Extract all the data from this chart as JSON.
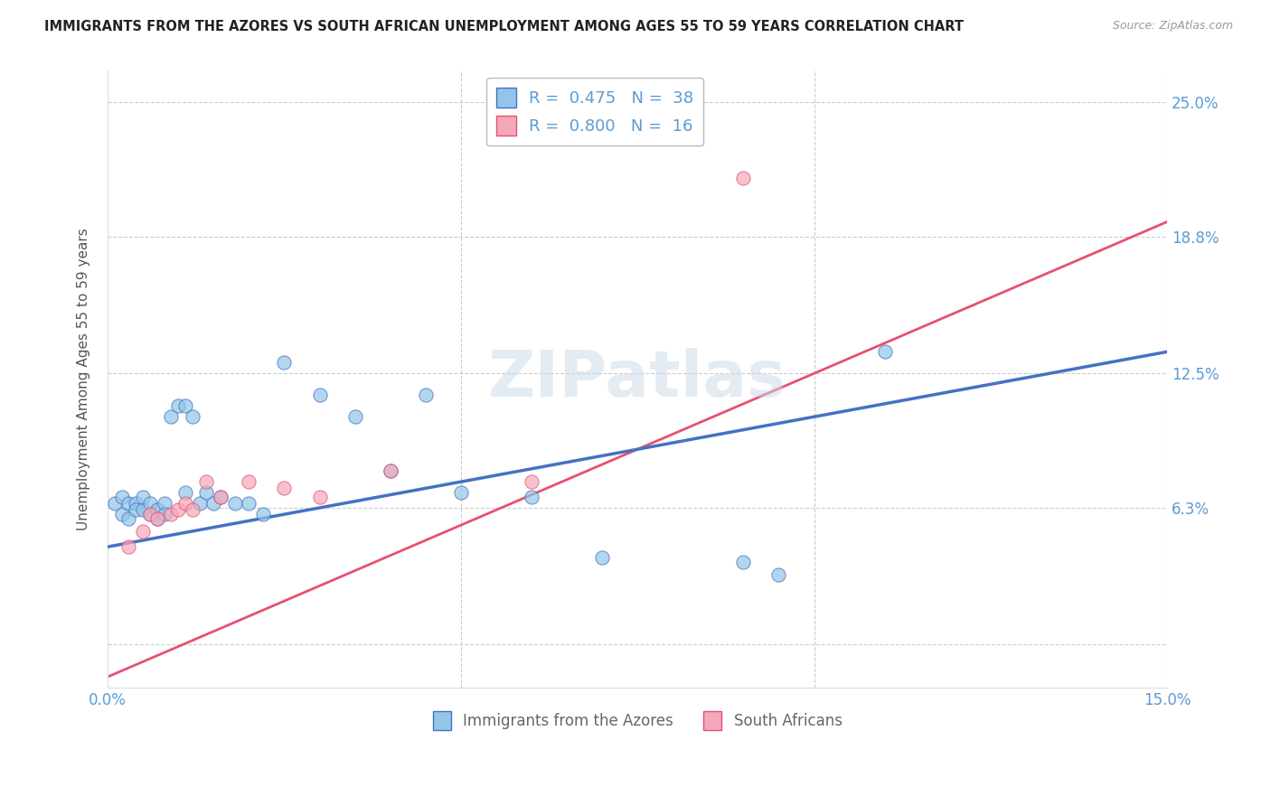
{
  "title": "IMMIGRANTS FROM THE AZORES VS SOUTH AFRICAN UNEMPLOYMENT AMONG AGES 55 TO 59 YEARS CORRELATION CHART",
  "source": "Source: ZipAtlas.com",
  "ylabel": "Unemployment Among Ages 55 to 59 years",
  "xlim": [
    0.0,
    0.15
  ],
  "ylim": [
    -0.02,
    0.265
  ],
  "xticks": [
    0.0,
    0.05,
    0.1,
    0.15
  ],
  "xticklabels": [
    "0.0%",
    "",
    "",
    "15.0%"
  ],
  "ytick_positions": [
    0.0,
    0.063,
    0.125,
    0.188,
    0.25
  ],
  "yticklabels_right": [
    "",
    "6.3%",
    "12.5%",
    "18.8%",
    "25.0%"
  ],
  "blue_R": 0.475,
  "blue_N": 38,
  "pink_R": 0.8,
  "pink_N": 16,
  "blue_color": "#92C5E8",
  "pink_color": "#F4A8BA",
  "trend_blue_color": "#4472C4",
  "trend_pink_color": "#E85070",
  "watermark": "ZIPatlas",
  "blue_scatter_x": [
    0.001,
    0.002,
    0.002,
    0.003,
    0.003,
    0.004,
    0.004,
    0.005,
    0.005,
    0.006,
    0.006,
    0.007,
    0.007,
    0.008,
    0.008,
    0.009,
    0.01,
    0.011,
    0.011,
    0.012,
    0.013,
    0.014,
    0.015,
    0.016,
    0.018,
    0.02,
    0.022,
    0.025,
    0.03,
    0.035,
    0.04,
    0.045,
    0.05,
    0.06,
    0.07,
    0.09,
    0.095,
    0.11
  ],
  "blue_scatter_y": [
    0.065,
    0.068,
    0.06,
    0.065,
    0.058,
    0.065,
    0.062,
    0.062,
    0.068,
    0.06,
    0.065,
    0.062,
    0.058,
    0.065,
    0.06,
    0.105,
    0.11,
    0.07,
    0.11,
    0.105,
    0.065,
    0.07,
    0.065,
    0.068,
    0.065,
    0.065,
    0.06,
    0.13,
    0.115,
    0.105,
    0.08,
    0.115,
    0.07,
    0.068,
    0.04,
    0.038,
    0.032,
    0.135
  ],
  "pink_scatter_x": [
    0.003,
    0.005,
    0.006,
    0.007,
    0.009,
    0.01,
    0.011,
    0.012,
    0.014,
    0.016,
    0.02,
    0.025,
    0.03,
    0.04,
    0.06,
    0.09
  ],
  "pink_scatter_y": [
    0.045,
    0.052,
    0.06,
    0.058,
    0.06,
    0.062,
    0.065,
    0.062,
    0.075,
    0.068,
    0.075,
    0.072,
    0.068,
    0.08,
    0.075,
    0.215
  ],
  "blue_trend_x0": 0.0,
  "blue_trend_x1": 0.15,
  "blue_trend_y0": 0.045,
  "blue_trend_y1": 0.135,
  "pink_trend_x0": 0.0,
  "pink_trend_x1": 0.15,
  "pink_trend_y0": -0.015,
  "pink_trend_y1": 0.195,
  "legend_label_blue": "Immigrants from the Azores",
  "legend_label_pink": "South Africans",
  "bg_color": "#FFFFFF",
  "grid_color": "#CCCCCC"
}
